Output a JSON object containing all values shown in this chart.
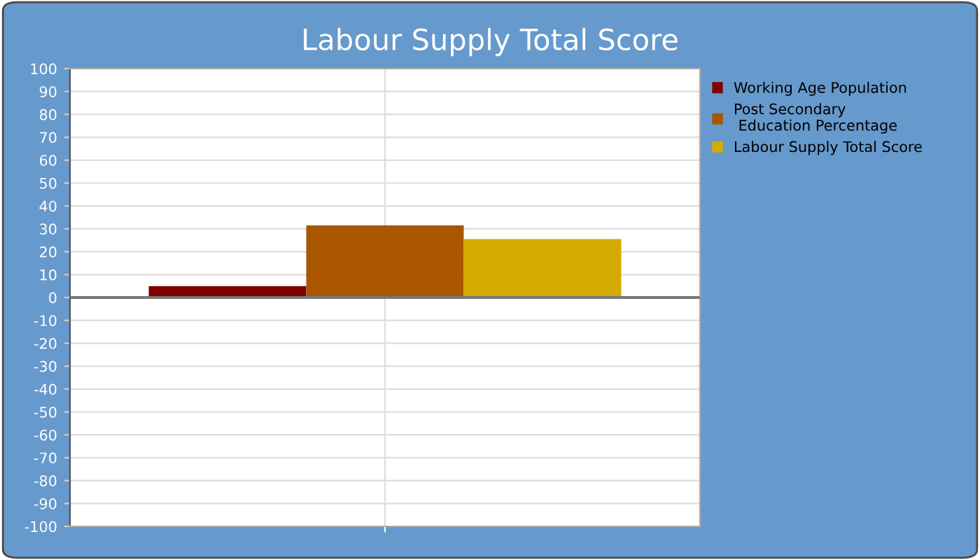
{
  "chart_data": {
    "type": "bar",
    "title": "Labour Supply Total Score",
    "categories": [
      null
    ],
    "series": [
      {
        "name": "Working Age Population",
        "color": "#800000",
        "values": [
          5
        ]
      },
      {
        "name": "Post Secondary\n Education Percentage",
        "color": "#aa5500",
        "values": [
          31.5
        ]
      },
      {
        "name": "Labour Supply Total Score",
        "color": "#d4aa00",
        "values": [
          25.5
        ]
      }
    ],
    "ylim": [
      -100,
      100
    ],
    "yticks": [
      -100,
      -90,
      -80,
      -70,
      -60,
      -50,
      -40,
      -30,
      -20,
      -10,
      0,
      10,
      20,
      30,
      40,
      50,
      60,
      70,
      80,
      90,
      100
    ],
    "grid": true,
    "legend": "right"
  }
}
